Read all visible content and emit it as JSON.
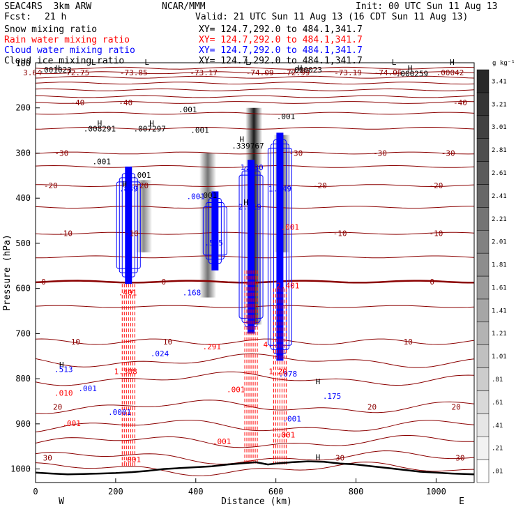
{
  "header": {
    "model": "SEAC4RS  3km ARW",
    "org": "NCAR/MMM",
    "init": "Init: 00 UTC Sun 11 Aug 13",
    "fcst_label": "Fcst:",
    "fcst_value": "21 h",
    "valid": "Valid: 21 UTC Sun 11 Aug 13 (16 CDT Sun 11 Aug 13)"
  },
  "legend": [
    {
      "label": "Snow mixing ratio",
      "xy": "XY= 124.7,292.0 to 484.1,341.7",
      "color": "#000000"
    },
    {
      "label": "Rain water mixing ratio",
      "xy": "XY= 124.7,292.0 to 484.1,341.7",
      "color": "#ff0000"
    },
    {
      "label": "Cloud water mixing ratio",
      "xy": "XY= 124.7,292.0 to 484.1,341.7",
      "color": "#0000ff"
    },
    {
      "label": "Cloud ice mixing ratio",
      "xy": "XY= 124.7,292.0 to 484.1,341.7",
      "color": "#000000"
    }
  ],
  "chart_data": {
    "type": "cross-section",
    "xlabel": "Distance (km)",
    "ylabel": "Pressure (hPa)",
    "x_ticks": [
      0,
      200,
      400,
      600,
      800,
      1000
    ],
    "xlim": [
      0,
      1095
    ],
    "y_ticks": [
      200,
      300,
      400,
      500,
      600,
      700,
      800,
      900,
      1000
    ],
    "ylim": [
      1030,
      100
    ],
    "y_top_label": "100",
    "x_ends": {
      "left": "W",
      "right": "E"
    },
    "colorbar": {
      "unit": "g kg⁻¹",
      "levels": [
        ".01",
        ".21",
        ".41",
        ".61",
        ".81",
        "1.01",
        "1.21",
        "1.41",
        "1.61",
        "1.81",
        "2.01",
        "2.21",
        "2.41",
        "2.61",
        "2.81",
        "3.01",
        "3.21",
        "3.41"
      ]
    },
    "temperature_contours_C": [
      -70,
      -60,
      -50,
      -40,
      -30,
      -20,
      -10,
      0,
      10,
      20,
      30
    ],
    "temperature_labels": [
      {
        "x": 105,
        "p": 188,
        "text": "-40"
      },
      {
        "x": 225,
        "p": 188,
        "text": "-40"
      },
      {
        "x": 1060,
        "p": 188,
        "text": "-40"
      },
      {
        "x": 65,
        "p": 300,
        "text": "-30"
      },
      {
        "x": 650,
        "p": 300,
        "text": "-30"
      },
      {
        "x": 860,
        "p": 300,
        "text": "-30"
      },
      {
        "x": 1030,
        "p": 300,
        "text": "-30"
      },
      {
        "x": 38,
        "p": 372,
        "text": "-20"
      },
      {
        "x": 265,
        "p": 372,
        "text": "-20"
      },
      {
        "x": 710,
        "p": 372,
        "text": "-20"
      },
      {
        "x": 1000,
        "p": 372,
        "text": "-20"
      },
      {
        "x": 75,
        "p": 478,
        "text": "-10"
      },
      {
        "x": 240,
        "p": 478,
        "text": "-10"
      },
      {
        "x": 760,
        "p": 478,
        "text": "-10"
      },
      {
        "x": 1000,
        "p": 478,
        "text": "-10"
      },
      {
        "x": 20,
        "p": 585,
        "text": "0"
      },
      {
        "x": 320,
        "p": 585,
        "text": "0"
      },
      {
        "x": 990,
        "p": 585,
        "text": "0"
      },
      {
        "x": 100,
        "p": 718,
        "text": "10"
      },
      {
        "x": 330,
        "p": 718,
        "text": "10"
      },
      {
        "x": 930,
        "p": 718,
        "text": "10"
      },
      {
        "x": 55,
        "p": 862,
        "text": "20"
      },
      {
        "x": 840,
        "p": 862,
        "text": "20"
      },
      {
        "x": 1050,
        "p": 862,
        "text": "20"
      },
      {
        "x": 30,
        "p": 975,
        "text": "30"
      },
      {
        "x": 760,
        "p": 975,
        "text": "30"
      },
      {
        "x": 1060,
        "p": 975,
        "text": "30"
      }
    ],
    "top_labels": [
      {
        "x": -8,
        "text": "3.64"
      },
      {
        "x": 100,
        "text": "-72.75"
      },
      {
        "x": 245,
        "text": "-73.85"
      },
      {
        "x": 420,
        "text": "-73.17"
      },
      {
        "x": 560,
        "text": "-74.09"
      },
      {
        "x": 650,
        "text": "-72.99"
      },
      {
        "x": 780,
        "text": "-73.19"
      },
      {
        "x": 880,
        "text": "-74.06"
      },
      {
        "x": 1035,
        "text": ".00042"
      }
    ],
    "hl_marks": [
      {
        "x": 55,
        "p": 118,
        "text": "H"
      },
      {
        "x": 145,
        "p": 105,
        "text": "L"
      },
      {
        "x": 278,
        "p": 105,
        "text": "L"
      },
      {
        "x": 530,
        "p": 105,
        "text": "L"
      },
      {
        "x": 660,
        "p": 118,
        "text": "H"
      },
      {
        "x": 895,
        "p": 105,
        "text": "L"
      },
      {
        "x": 935,
        "p": 118,
        "text": "H"
      },
      {
        "x": 1040,
        "p": 105,
        "text": "H"
      },
      {
        "x": 160,
        "p": 240,
        "text": "H"
      },
      {
        "x": 290,
        "p": 240,
        "text": "H"
      },
      {
        "x": 515,
        "p": 275,
        "text": "H"
      },
      {
        "x": 222,
        "p": 375,
        "text": "H"
      },
      {
        "x": 525,
        "p": 415,
        "text": "H"
      },
      {
        "x": 65,
        "p": 775,
        "text": "H"
      },
      {
        "x": 705,
        "p": 812,
        "text": "H"
      },
      {
        "x": 705,
        "p": 980,
        "text": "H"
      }
    ],
    "value_labels": [
      {
        "x": 50,
        "p": 122,
        "text": ".001023",
        "color": "#000000"
      },
      {
        "x": 675,
        "p": 122,
        "text": ".000023",
        "color": "#000000"
      },
      {
        "x": 940,
        "p": 130,
        "text": ".000259",
        "color": "#000000"
      },
      {
        "x": 160,
        "p": 252,
        "text": ".008291",
        "color": "#000000"
      },
      {
        "x": 285,
        "p": 252,
        "text": ".007297",
        "color": "#000000"
      },
      {
        "x": 380,
        "p": 210,
        "text": ".001",
        "color": "#000000"
      },
      {
        "x": 410,
        "p": 255,
        "text": ".001",
        "color": "#000000"
      },
      {
        "x": 165,
        "p": 325,
        "text": ".001",
        "color": "#000000"
      },
      {
        "x": 265,
        "p": 355,
        "text": ".001",
        "color": "#000000"
      },
      {
        "x": 430,
        "p": 400,
        "text": ".001",
        "color": "#000000"
      },
      {
        "x": 530,
        "p": 290,
        "text": ".339767",
        "color": "#000000"
      },
      {
        "x": 625,
        "p": 225,
        "text": ".001",
        "color": "#000000"
      },
      {
        "x": 232,
        "p": 385,
        "text": ".889",
        "color": "#0000ff"
      },
      {
        "x": 400,
        "p": 402,
        "text": ".001",
        "color": "#0000ff"
      },
      {
        "x": 445,
        "p": 505,
        "text": ".545",
        "color": "#0000ff"
      },
      {
        "x": 535,
        "p": 425,
        "text": "2.219",
        "color": "#0000ff"
      },
      {
        "x": 540,
        "p": 338,
        "text": "1.830",
        "color": "#0000ff"
      },
      {
        "x": 610,
        "p": 385,
        "text": "1.449",
        "color": "#0000ff"
      },
      {
        "x": 390,
        "p": 615,
        "text": ".168",
        "color": "#0000ff"
      },
      {
        "x": 310,
        "p": 750,
        "text": ".024",
        "color": "#0000ff"
      },
      {
        "x": 70,
        "p": 785,
        "text": ".513",
        "color": "#0000ff"
      },
      {
        "x": 130,
        "p": 828,
        "text": ".001",
        "color": "#0000ff"
      },
      {
        "x": 210,
        "p": 880,
        "text": ".0001",
        "color": "#0000ff"
      },
      {
        "x": 630,
        "p": 795,
        "text": ".078",
        "color": "#0000ff"
      },
      {
        "x": 640,
        "p": 895,
        "text": ".001",
        "color": "#0000ff"
      },
      {
        "x": 740,
        "p": 845,
        "text": ".175",
        "color": "#0000ff"
      },
      {
        "x": 635,
        "p": 470,
        "text": ".001",
        "color": "#ff0000"
      },
      {
        "x": 630,
        "p": 600,
        "text": "2.401",
        "color": "#ff0000"
      },
      {
        "x": 230,
        "p": 615,
        "text": ".401",
        "color": "#ff0000"
      },
      {
        "x": 440,
        "p": 735,
        "text": ".291",
        "color": "#ff0000"
      },
      {
        "x": 580,
        "p": 730,
        "text": "4.",
        "color": "#ff0000"
      },
      {
        "x": 225,
        "p": 790,
        "text": "1.308",
        "color": "#ff0000"
      },
      {
        "x": 605,
        "p": 790,
        "text": "1.20",
        "color": "#ff0000"
      },
      {
        "x": 70,
        "p": 838,
        "text": ".010",
        "color": "#ff0000"
      },
      {
        "x": 90,
        "p": 905,
        "text": ".001",
        "color": "#ff0000"
      },
      {
        "x": 240,
        "p": 985,
        "text": ".001",
        "color": "#ff0000"
      },
      {
        "x": 500,
        "p": 830,
        "text": ".001",
        "color": "#ff0000"
      },
      {
        "x": 465,
        "p": 945,
        "text": ".001",
        "color": "#ff0000"
      },
      {
        "x": 625,
        "p": 930,
        "text": ".001",
        "color": "#ff0000"
      }
    ],
    "cells": [
      {
        "name": "cloud-1",
        "x": 232,
        "p_top": 330,
        "p_bot": 590,
        "color": "#0000ff",
        "kind": "cloud"
      },
      {
        "name": "cloud-2",
        "x": 448,
        "p_top": 385,
        "p_bot": 560,
        "color": "#0000ff",
        "kind": "cloud"
      },
      {
        "name": "cloud-3",
        "x": 538,
        "p_top": 315,
        "p_bot": 700,
        "color": "#0000ff",
        "kind": "cloud"
      },
      {
        "name": "cloud-4",
        "x": 610,
        "p_top": 255,
        "p_bot": 760,
        "color": "#0000ff",
        "kind": "cloud"
      },
      {
        "name": "rain-1",
        "x": 232,
        "p_top": 590,
        "p_bot": 995,
        "color": "#ff0000",
        "kind": "rain"
      },
      {
        "name": "rain-3",
        "x": 538,
        "p_top": 560,
        "p_bot": 990,
        "color": "#ff0000",
        "kind": "rain"
      },
      {
        "name": "rain-4",
        "x": 610,
        "p_top": 600,
        "p_bot": 990,
        "color": "#ff0000",
        "kind": "rain"
      }
    ],
    "snow_shading": [
      {
        "x": 270,
        "p_top": 360,
        "p_bot": 520,
        "intensity": 0.45
      },
      {
        "x": 430,
        "p_top": 300,
        "p_bot": 620,
        "intensity": 0.55
      },
      {
        "x": 545,
        "p_top": 200,
        "p_bot": 680,
        "intensity": 0.9
      },
      {
        "x": 615,
        "p_top": 260,
        "p_bot": 520,
        "intensity": 0.6
      }
    ],
    "terrain_p": [
      [
        0,
        1008
      ],
      [
        40,
        1010
      ],
      [
        80,
        1012
      ],
      [
        120,
        1011
      ],
      [
        160,
        1010
      ],
      [
        200,
        1009
      ],
      [
        240,
        1007
      ],
      [
        280,
        1004
      ],
      [
        320,
        1000
      ],
      [
        360,
        998
      ],
      [
        400,
        996
      ],
      [
        440,
        994
      ],
      [
        480,
        990
      ],
      [
        520,
        987
      ],
      [
        550,
        985
      ],
      [
        580,
        990
      ],
      [
        600,
        988
      ],
      [
        640,
        985
      ],
      [
        680,
        983
      ],
      [
        720,
        984
      ],
      [
        760,
        988
      ],
      [
        800,
        990
      ],
      [
        840,
        994
      ],
      [
        880,
        998
      ],
      [
        920,
        1002
      ],
      [
        960,
        1006
      ],
      [
        1000,
        1008
      ],
      [
        1040,
        1010
      ],
      [
        1095,
        1012
      ]
    ]
  }
}
